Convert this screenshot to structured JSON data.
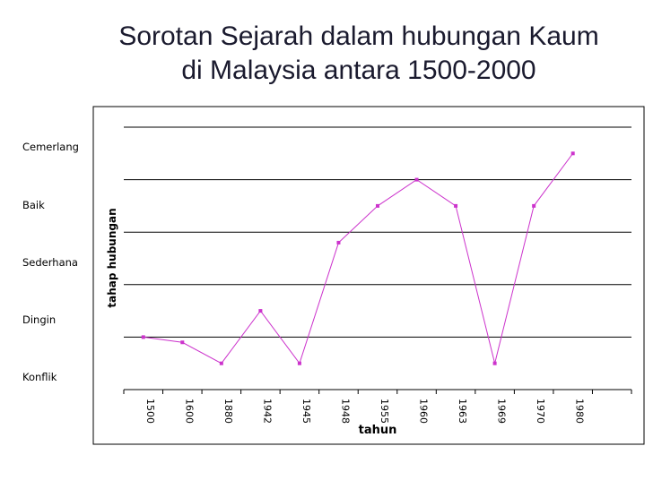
{
  "title_line1": "Sorotan Sejarah dalam hubungan Kaum",
  "title_line2": "di Malaysia antara 1500-2000",
  "level_labels": [
    "Cemerlang",
    "Baik",
    "Sederhana",
    "Dingin",
    "Konflik"
  ],
  "colors": {
    "series": "#cc33cc",
    "grid": "#000000",
    "frame": "#000000",
    "title": "#1a1a2e"
  },
  "chart_data": {
    "type": "line",
    "title": "Sorotan Sejarah dalam hubungan Kaum di Malaysia antara 1500-2000",
    "xlabel": "tahun",
    "ylabel": "tahap hubungan",
    "categories": [
      "1500",
      "1600",
      "1880",
      "1942",
      "1945",
      "1948",
      "1955",
      "1960",
      "1963",
      "1969",
      "1970",
      "1980"
    ],
    "y_tick_labels": [
      "Konflik",
      "Dingin",
      "Sederhana",
      "Baik",
      "Cemerlang"
    ],
    "ylim": [
      0.5,
      5.5
    ],
    "grid": true,
    "legend": "none",
    "series": [
      {
        "values": [
          1.5,
          1.4,
          1.0,
          2.0,
          1.0,
          3.3,
          4.0,
          4.5,
          4.0,
          1.0,
          4.0,
          5.0
        ]
      }
    ]
  }
}
